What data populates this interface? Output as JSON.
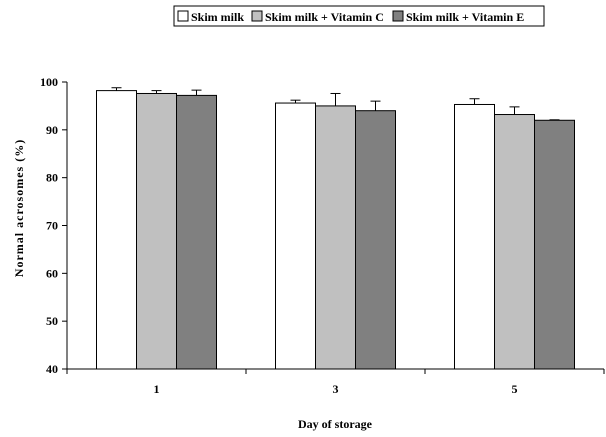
{
  "chart_data": {
    "type": "bar",
    "title": "",
    "xlabel": "Day of storage",
    "ylabel": "Normal acrosomes (%)",
    "categories": [
      "1",
      "3",
      "5"
    ],
    "ylim": [
      40,
      100
    ],
    "yticks": [
      40,
      50,
      60,
      70,
      80,
      90,
      100
    ],
    "grid": false,
    "legend_position": "top",
    "series": [
      {
        "name": "Skim milk",
        "color": "#ffffff",
        "values": [
          98.2,
          95.6,
          95.3
        ],
        "errors": [
          0.6,
          0.6,
          1.2
        ]
      },
      {
        "name": "Skim milk + Vitamin C",
        "color": "#c0c0c0",
        "values": [
          97.6,
          95.0,
          93.2
        ],
        "errors": [
          0.6,
          2.6,
          1.6
        ]
      },
      {
        "name": "Skim milk + Vitamin E",
        "color": "#808080",
        "values": [
          97.2,
          94.0,
          92.0
        ],
        "errors": [
          1.1,
          2.0,
          0.1
        ]
      }
    ]
  }
}
